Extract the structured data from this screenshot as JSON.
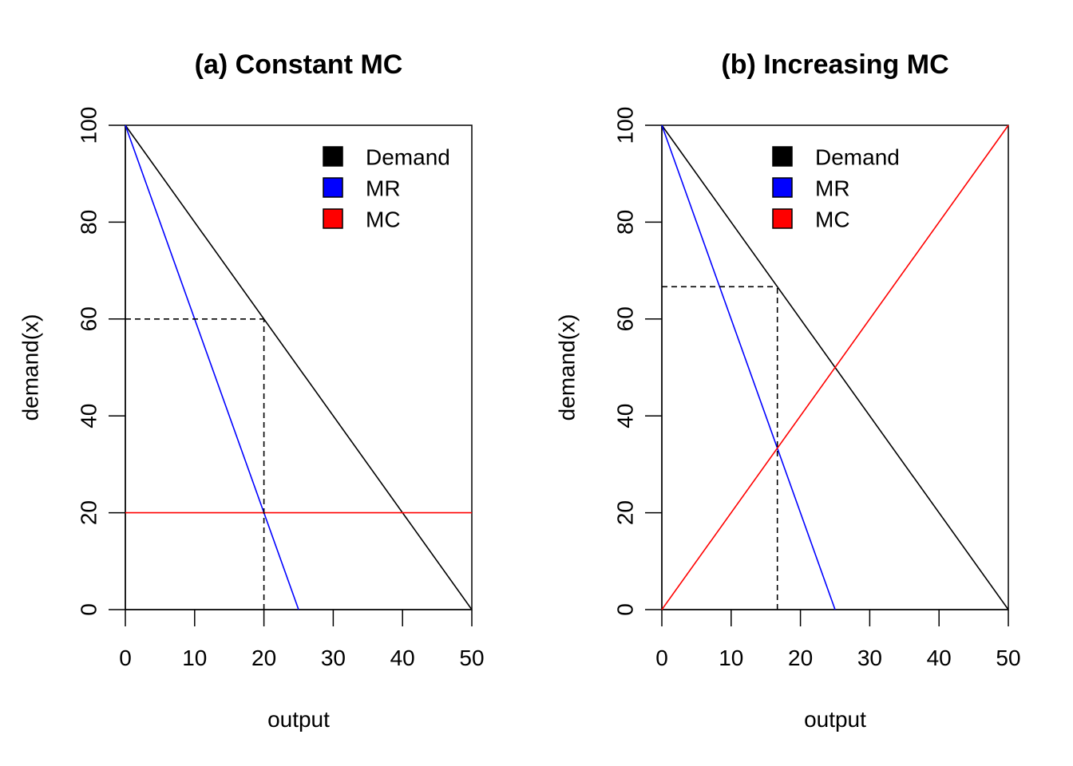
{
  "chart_data": [
    {
      "type": "line",
      "title": "(a) Constant MC",
      "xlabel": "output",
      "ylabel": "demand(x)",
      "xlim": [
        0,
        50
      ],
      "ylim": [
        0,
        100
      ],
      "xticks": [
        0,
        10,
        20,
        30,
        40,
        50
      ],
      "yticks": [
        0,
        20,
        40,
        60,
        80,
        100
      ],
      "xtick_labels": [
        "0",
        "10",
        "20",
        "30",
        "40",
        "50"
      ],
      "ytick_labels": [
        "0",
        "20",
        "40",
        "60",
        "80",
        "100"
      ],
      "grid": false,
      "legend_position": "top-right",
      "series": [
        {
          "name": "Demand",
          "color": "#000000",
          "x": [
            0,
            50
          ],
          "y": [
            100,
            0
          ]
        },
        {
          "name": "MR",
          "color": "#0000ff",
          "x": [
            0,
            25
          ],
          "y": [
            100,
            0
          ]
        },
        {
          "name": "MC",
          "color": "#ff0000",
          "x": [
            0,
            50
          ],
          "y": [
            20,
            20
          ]
        }
      ],
      "reference_lines": [
        {
          "style": "dashed",
          "x": [
            0,
            20
          ],
          "y": [
            60,
            60
          ]
        },
        {
          "style": "dashed",
          "x": [
            20,
            20
          ],
          "y": [
            0,
            60
          ]
        }
      ]
    },
    {
      "type": "line",
      "title": "(b) Increasing MC",
      "xlabel": "output",
      "ylabel": "demand(x)",
      "xlim": [
        0,
        50
      ],
      "ylim": [
        0,
        100
      ],
      "xticks": [
        0,
        10,
        20,
        30,
        40,
        50
      ],
      "yticks": [
        0,
        20,
        40,
        60,
        80,
        100
      ],
      "xtick_labels": [
        "0",
        "10",
        "20",
        "30",
        "40",
        "50"
      ],
      "ytick_labels": [
        "0",
        "20",
        "40",
        "60",
        "80",
        "100"
      ],
      "grid": false,
      "legend_position": "top-center",
      "series": [
        {
          "name": "Demand",
          "color": "#000000",
          "x": [
            0,
            50
          ],
          "y": [
            100,
            0
          ]
        },
        {
          "name": "MR",
          "color": "#0000ff",
          "x": [
            0,
            25
          ],
          "y": [
            100,
            0
          ]
        },
        {
          "name": "MC",
          "color": "#ff0000",
          "x": [
            0,
            50
          ],
          "y": [
            0,
            100
          ]
        }
      ],
      "reference_lines": [
        {
          "style": "dashed",
          "x": [
            0,
            16.67
          ],
          "y": [
            66.67,
            66.67
          ]
        },
        {
          "style": "dashed",
          "x": [
            16.67,
            16.67
          ],
          "y": [
            0,
            66.67
          ]
        }
      ]
    }
  ]
}
